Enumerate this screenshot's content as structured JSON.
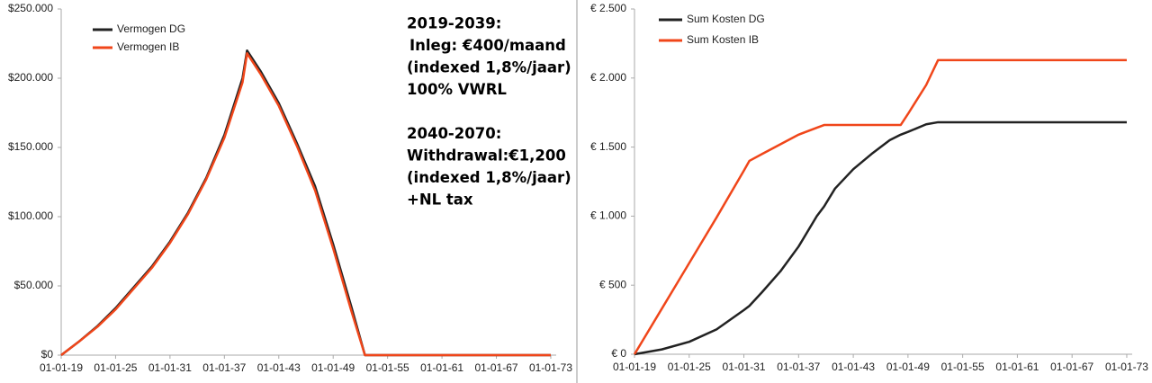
{
  "chart_data": [
    {
      "type": "line",
      "x": [
        2019,
        2021,
        2023,
        2025,
        2027,
        2029,
        2031,
        2033,
        2035,
        2037,
        2039,
        2039.5,
        2041,
        2043,
        2045,
        2047,
        2049,
        2051,
        2052.5,
        2055,
        2061,
        2067,
        2073
      ],
      "series": [
        {
          "name": "Vermogen DG",
          "color": "#222222",
          "values": [
            0,
            10000,
            21000,
            34000,
            49000,
            64000,
            82000,
            103000,
            128000,
            159000,
            200000,
            220000,
            205000,
            182000,
            153000,
            122000,
            80000,
            35000,
            0,
            0,
            0,
            0,
            0
          ]
        },
        {
          "name": "Vermogen IB",
          "color": "#f0461a",
          "values": [
            0,
            10000,
            20500,
            33000,
            48000,
            63000,
            81000,
            102000,
            127000,
            157000,
            197000,
            218000,
            203000,
            180000,
            151000,
            119000,
            77000,
            32000,
            0,
            0,
            0,
            0,
            0
          ]
        }
      ],
      "xlim": [
        2019,
        2073.3
      ],
      "xticks": [
        {
          "value": 2019,
          "label": "01-01-19"
        },
        {
          "value": 2025,
          "label": "01-01-25"
        },
        {
          "value": 2031,
          "label": "01-01-31"
        },
        {
          "value": 2037,
          "label": "01-01-37"
        },
        {
          "value": 2043,
          "label": "01-01-43"
        },
        {
          "value": 2049,
          "label": "01-01-49"
        },
        {
          "value": 2055,
          "label": "01-01-55"
        },
        {
          "value": 2061,
          "label": "01-01-61"
        },
        {
          "value": 2067,
          "label": "01-01-67"
        },
        {
          "value": 2073,
          "label": "01-01-73"
        }
      ],
      "ylim": [
        0,
        250000
      ],
      "yticks": [
        {
          "value": 0,
          "label": "$0"
        },
        {
          "value": 50000,
          "label": "$50.000"
        },
        {
          "value": 100000,
          "label": "$100.000"
        },
        {
          "value": 150000,
          "label": "$150.000"
        },
        {
          "value": 200000,
          "label": "$200.000"
        },
        {
          "value": 250000,
          "label": "$250.000"
        }
      ],
      "legend": "upper left",
      "annotations": [
        "2019-2039:",
        "Inleg: €400/maand",
        "(indexed 1,8%/jaar)",
        "100% VWRL",
        "2040-2070:",
        "Withdrawal:€1,200",
        "(indexed 1,8%/jaar)",
        "+NL tax"
      ]
    },
    {
      "type": "line",
      "x": [
        2019,
        2022,
        2025,
        2028,
        2031,
        2031.6,
        2033,
        2035,
        2037,
        2039,
        2039.8,
        2041,
        2043,
        2045,
        2047,
        2048.2,
        2049,
        2051,
        2052.3,
        2073
      ],
      "series": [
        {
          "name": "Sum Kosten DG",
          "color": "#222222",
          "values": [
            0,
            35,
            90,
            180,
            320,
            350,
            450,
            600,
            780,
            1000,
            1070,
            1200,
            1340,
            1450,
            1550,
            1590,
            1610,
            1665,
            1680,
            1680
          ]
        },
        {
          "name": "Sum Kosten IB",
          "color": "#f0461a",
          "values": [
            0,
            330,
            660,
            990,
            1330,
            1400,
            1450,
            1520,
            1590,
            1640,
            1660,
            1660,
            1660,
            1660,
            1660,
            1660,
            1740,
            1950,
            2130,
            2130
          ]
        }
      ],
      "xlim": [
        2019,
        2073.3
      ],
      "xticks": [
        {
          "value": 2019,
          "label": "01-01-19"
        },
        {
          "value": 2025,
          "label": "01-01-25"
        },
        {
          "value": 2031,
          "label": "01-01-31"
        },
        {
          "value": 2037,
          "label": "01-01-37"
        },
        {
          "value": 2043,
          "label": "01-01-43"
        },
        {
          "value": 2049,
          "label": "01-01-49"
        },
        {
          "value": 2055,
          "label": "01-01-55"
        },
        {
          "value": 2061,
          "label": "01-01-61"
        },
        {
          "value": 2067,
          "label": "01-01-67"
        },
        {
          "value": 2073,
          "label": "01-01-73"
        }
      ],
      "ylim": [
        0,
        2500
      ],
      "yticks": [
        {
          "value": 0,
          "label": "€ 0"
        },
        {
          "value": 500,
          "label": "€ 500"
        },
        {
          "value": 1000,
          "label": "€ 1.000"
        },
        {
          "value": 1500,
          "label": "€ 1.500"
        },
        {
          "value": 2000,
          "label": "€ 2.000"
        },
        {
          "value": 2500,
          "label": "€ 2.500"
        }
      ],
      "legend": "upper left"
    }
  ]
}
